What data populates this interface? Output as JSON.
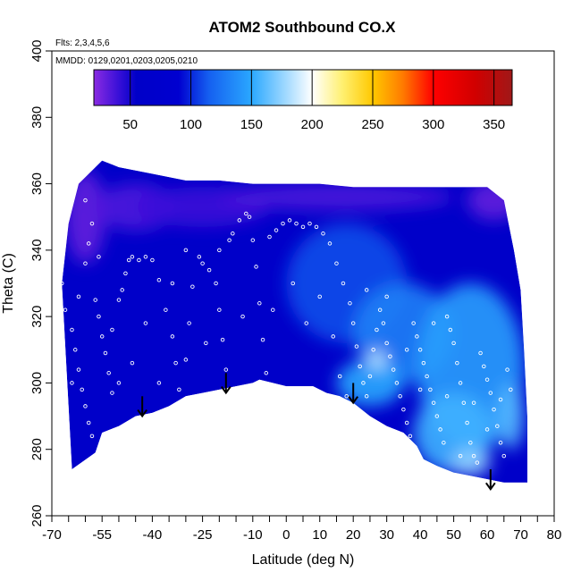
{
  "chart_data": {
    "type": "heatmap",
    "title": "ATOM2 Southbound CO.X",
    "notes": [
      "Flts: 2,3,4,5,6",
      "MMDD: 0129,0201,0203,0205,0210"
    ],
    "xlabel": "Latitude (deg N)",
    "ylabel": "Theta (C)",
    "xlim": [
      -70,
      80
    ],
    "ylim": [
      260,
      400
    ],
    "x_tick_labels": [
      -70,
      -55,
      -40,
      -25,
      -10,
      0,
      10,
      20,
      30,
      40,
      50,
      60,
      70,
      80
    ],
    "x_ticks_minor": [
      -65,
      -60,
      -50,
      -45,
      -35,
      -30,
      -20,
      -15,
      -5,
      5,
      15,
      25,
      35,
      45,
      55,
      65,
      75
    ],
    "y_ticks": [
      260,
      280,
      300,
      320,
      340,
      360,
      380,
      400
    ],
    "colorbar": {
      "range": [
        20,
        365
      ],
      "ticks": [
        50,
        100,
        150,
        200,
        250,
        300,
        350
      ],
      "stops": [
        [
          20,
          "#8a2be2"
        ],
        [
          40,
          "#3a10d8"
        ],
        [
          55,
          "#0000c8"
        ],
        [
          90,
          "#0000d0"
        ],
        [
          115,
          "#1560f0"
        ],
        [
          150,
          "#2aa8ff"
        ],
        [
          180,
          "#a8dcff"
        ],
        [
          200,
          "#ffffff"
        ],
        [
          225,
          "#fff070"
        ],
        [
          250,
          "#ffc800"
        ],
        [
          275,
          "#ff7a00"
        ],
        [
          300,
          "#ff0000"
        ],
        [
          335,
          "#d00000"
        ],
        [
          365,
          "#a01818"
        ]
      ]
    },
    "lower_boundary": [
      [
        -64,
        274
      ],
      [
        -57,
        279
      ],
      [
        -55,
        285
      ],
      [
        -50,
        287
      ],
      [
        -45,
        290
      ],
      [
        -40,
        291
      ],
      [
        -35,
        293
      ],
      [
        -30,
        296
      ],
      [
        -25,
        297
      ],
      [
        -20,
        298
      ],
      [
        -15,
        299
      ],
      [
        -10,
        300
      ],
      [
        -8,
        301
      ],
      [
        0,
        299
      ],
      [
        8,
        299
      ],
      [
        12,
        297
      ],
      [
        16,
        296
      ],
      [
        20,
        294
      ],
      [
        25,
        290
      ],
      [
        30,
        287
      ],
      [
        35,
        285
      ],
      [
        39,
        281
      ],
      [
        41,
        277
      ],
      [
        45,
        275
      ],
      [
        50,
        273
      ],
      [
        55,
        272
      ],
      [
        60,
        271
      ],
      [
        65,
        270
      ],
      [
        72,
        270
      ]
    ],
    "upper_boundary": [
      [
        -67,
        330
      ],
      [
        -65,
        348
      ],
      [
        -62,
        360
      ],
      [
        -58,
        364
      ],
      [
        -55,
        367
      ],
      [
        -50,
        365
      ],
      [
        -40,
        363
      ],
      [
        -30,
        361
      ],
      [
        -20,
        361
      ],
      [
        -10,
        360
      ],
      [
        0,
        360
      ],
      [
        10,
        360
      ],
      [
        20,
        359
      ],
      [
        30,
        359
      ],
      [
        40,
        359
      ],
      [
        50,
        359
      ],
      [
        60,
        359
      ],
      [
        65,
        355
      ],
      [
        68,
        340
      ],
      [
        70,
        328
      ],
      [
        71,
        310
      ],
      [
        72,
        290
      ],
      [
        72,
        270
      ]
    ],
    "field_regions": [
      {
        "lat": -60,
        "theta": 350,
        "rx": 6,
        "ry": 14,
        "value": 30
      },
      {
        "lat": -45,
        "theta": 353,
        "rx": 12,
        "ry": 7,
        "value": 35
      },
      {
        "lat": -25,
        "theta": 353,
        "rx": 20,
        "ry": 6,
        "value": 40
      },
      {
        "lat": 15,
        "theta": 356,
        "rx": 35,
        "ry": 4,
        "value": 35
      },
      {
        "lat": 62,
        "theta": 355,
        "rx": 8,
        "ry": 6,
        "value": 30
      },
      {
        "lat": 18,
        "theta": 330,
        "rx": 18,
        "ry": 18,
        "value": 110
      },
      {
        "lat": 35,
        "theta": 315,
        "rx": 15,
        "ry": 15,
        "value": 130
      },
      {
        "lat": 55,
        "theta": 305,
        "rx": 16,
        "ry": 25,
        "value": 145
      },
      {
        "lat": 25,
        "theta": 300,
        "rx": 10,
        "ry": 7,
        "value": 150
      },
      {
        "lat": 27,
        "theta": 307,
        "rx": 3,
        "ry": 3,
        "value": 185
      },
      {
        "lat": 50,
        "theta": 285,
        "rx": 12,
        "ry": 12,
        "value": 155
      },
      {
        "lat": 55,
        "theta": 276,
        "rx": 6,
        "ry": 4,
        "value": 175
      },
      {
        "lat": 67,
        "theta": 290,
        "rx": 4,
        "ry": 10,
        "value": 160
      }
    ],
    "arrows": [
      {
        "lat": -43,
        "theta_top": 296,
        "theta_tip": 290
      },
      {
        "lat": -18,
        "theta_top": 303,
        "theta_tip": 297
      },
      {
        "lat": 20,
        "theta_top": 300,
        "theta_tip": 294
      },
      {
        "lat": 61,
        "theta_top": 274,
        "theta_tip": 268
      }
    ],
    "sample_points": [
      [
        -67,
        330
      ],
      [
        -66,
        322
      ],
      [
        -64,
        316
      ],
      [
        -63,
        310
      ],
      [
        -62,
        304
      ],
      [
        -61,
        298
      ],
      [
        -60,
        293
      ],
      [
        -59,
        288
      ],
      [
        -58,
        284
      ],
      [
        -60,
        336
      ],
      [
        -59,
        342
      ],
      [
        -58,
        348
      ],
      [
        -60,
        355
      ],
      [
        -57,
        325
      ],
      [
        -56,
        320
      ],
      [
        -55,
        314
      ],
      [
        -54,
        309
      ],
      [
        -53,
        303
      ],
      [
        -52,
        297
      ],
      [
        -50,
        300
      ],
      [
        -50,
        325
      ],
      [
        -49,
        328
      ],
      [
        -48,
        333
      ],
      [
        -47,
        337
      ],
      [
        -46,
        338
      ],
      [
        -44,
        337
      ],
      [
        -42,
        338
      ],
      [
        -40,
        337
      ],
      [
        -38,
        331
      ],
      [
        -36,
        322
      ],
      [
        -34,
        314
      ],
      [
        -33,
        306
      ],
      [
        -32,
        298
      ],
      [
        -30,
        307
      ],
      [
        -29,
        318
      ],
      [
        -28,
        329
      ],
      [
        -26,
        338
      ],
      [
        -25,
        336
      ],
      [
        -23,
        334
      ],
      [
        -21,
        330
      ],
      [
        -20,
        322
      ],
      [
        -19,
        313
      ],
      [
        -18,
        304
      ],
      [
        -17,
        343
      ],
      [
        -16,
        345
      ],
      [
        -14,
        349
      ],
      [
        -12,
        351
      ],
      [
        -11,
        350
      ],
      [
        -10,
        343
      ],
      [
        -9,
        335
      ],
      [
        -8,
        324
      ],
      [
        -7,
        313
      ],
      [
        -6,
        303
      ],
      [
        -5,
        344
      ],
      [
        -3,
        346
      ],
      [
        -1,
        348
      ],
      [
        1,
        349
      ],
      [
        3,
        348
      ],
      [
        5,
        347
      ],
      [
        7,
        348
      ],
      [
        9,
        347
      ],
      [
        11,
        345
      ],
      [
        13,
        342
      ],
      [
        15,
        336
      ],
      [
        17,
        330
      ],
      [
        19,
        324
      ],
      [
        20,
        318
      ],
      [
        21,
        311
      ],
      [
        22,
        305
      ],
      [
        23,
        300
      ],
      [
        24,
        296
      ],
      [
        25,
        302
      ],
      [
        26,
        310
      ],
      [
        27,
        316
      ],
      [
        28,
        322
      ],
      [
        29,
        318
      ],
      [
        30,
        312
      ],
      [
        31,
        308
      ],
      [
        32,
        304
      ],
      [
        33,
        300
      ],
      [
        34,
        296
      ],
      [
        35,
        292
      ],
      [
        36,
        288
      ],
      [
        37,
        284
      ],
      [
        38,
        318
      ],
      [
        39,
        314
      ],
      [
        40,
        310
      ],
      [
        41,
        306
      ],
      [
        42,
        302
      ],
      [
        43,
        298
      ],
      [
        44,
        294
      ],
      [
        45,
        290
      ],
      [
        46,
        286
      ],
      [
        47,
        282
      ],
      [
        48,
        320
      ],
      [
        49,
        316
      ],
      [
        50,
        312
      ],
      [
        51,
        306
      ],
      [
        52,
        300
      ],
      [
        53,
        294
      ],
      [
        54,
        288
      ],
      [
        55,
        282
      ],
      [
        56,
        278
      ],
      [
        57,
        276
      ],
      [
        58,
        309
      ],
      [
        59,
        305
      ],
      [
        60,
        301
      ],
      [
        61,
        297
      ],
      [
        62,
        292
      ],
      [
        63,
        287
      ],
      [
        64,
        282
      ],
      [
        65,
        278
      ],
      [
        66,
        304
      ],
      [
        67,
        298
      ],
      [
        -64,
        300
      ],
      [
        -62,
        326
      ],
      [
        -56,
        338
      ],
      [
        -52,
        316
      ],
      [
        -46,
        306
      ],
      [
        -42,
        318
      ],
      [
        -38,
        300
      ],
      [
        -34,
        330
      ],
      [
        -30,
        340
      ],
      [
        -24,
        312
      ],
      [
        -20,
        340
      ],
      [
        -13,
        320
      ],
      [
        -4,
        322
      ],
      [
        2,
        330
      ],
      [
        6,
        318
      ],
      [
        10,
        326
      ],
      [
        14,
        314
      ],
      [
        16,
        302
      ],
      [
        18,
        296
      ],
      [
        24,
        328
      ],
      [
        30,
        326
      ],
      [
        36,
        310
      ],
      [
        40,
        298
      ],
      [
        44,
        318
      ],
      [
        48,
        296
      ],
      [
        52,
        278
      ],
      [
        56,
        294
      ],
      [
        60,
        286
      ],
      [
        64,
        295
      ]
    ]
  }
}
